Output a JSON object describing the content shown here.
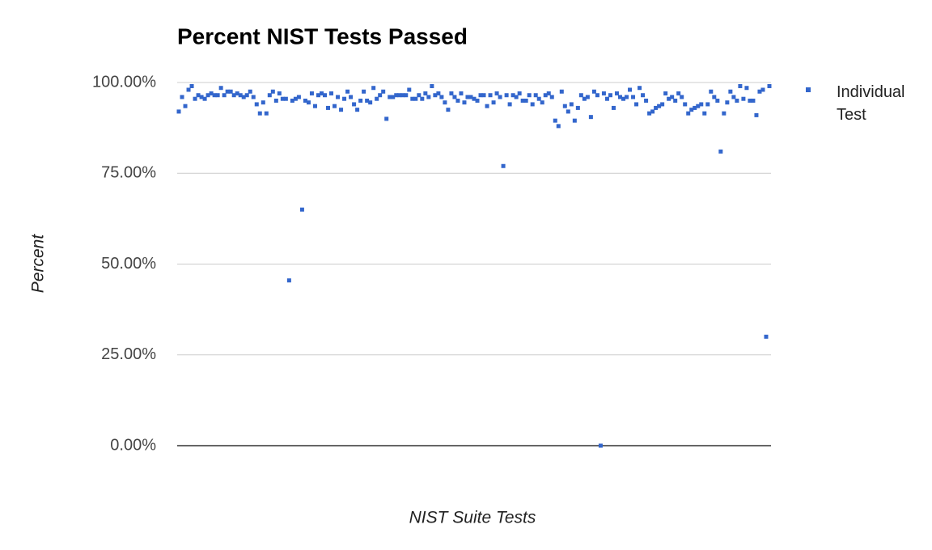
{
  "chart_data": {
    "type": "scatter",
    "title": "Percent NIST Tests Passed",
    "x_label": "NIST Suite Tests",
    "y_label": "Percent",
    "series": [
      {
        "name": "Individual Test",
        "color": "#3366cc",
        "values": [
          92,
          96,
          93.5,
          98,
          99,
          95.5,
          96.5,
          96,
          95.5,
          96.5,
          97,
          96.5,
          96.5,
          98.5,
          96.5,
          97.5,
          97.5,
          96.5,
          97,
          96.5,
          96,
          96.5,
          97.5,
          96,
          94,
          91.5,
          94.5,
          91.5,
          96.5,
          97.5,
          95,
          97,
          95.5,
          95.5,
          45.5,
          95,
          95.5,
          96,
          65,
          95,
          94.5,
          97,
          93.5,
          96.5,
          97,
          96.5,
          93,
          97,
          93.5,
          96,
          92.5,
          95.5,
          97.5,
          96,
          94,
          92.5,
          95,
          97.5,
          95,
          94.5,
          98.5,
          95.5,
          96.5,
          97.5,
          90,
          96,
          96,
          96.5,
          96.5,
          96.5,
          96.5,
          98,
          95.5,
          95.5,
          96.5,
          95.5,
          97,
          96,
          99,
          96.5,
          97,
          96,
          94.5,
          92.5,
          97,
          96,
          95,
          97,
          94.5,
          96,
          96,
          95.5,
          95,
          96.5,
          96.5,
          93.5,
          96.5,
          94.5,
          97,
          96,
          77,
          96.5,
          94,
          96.5,
          96,
          97,
          95,
          95,
          96.5,
          94,
          96.5,
          95.5,
          94.5,
          96.5,
          97,
          96,
          89.5,
          88,
          97.5,
          93.5,
          92,
          94,
          89.5,
          93,
          96.5,
          95.5,
          96,
          90.5,
          97.5,
          96.5,
          0,
          97,
          95.5,
          96.5,
          93,
          97,
          96,
          95.5,
          96,
          98,
          96,
          94,
          98.5,
          96.5,
          95,
          91.5,
          92,
          93,
          93.5,
          94,
          97,
          95.5,
          96,
          95,
          97,
          96,
          94,
          91.5,
          92.5,
          93,
          93.5,
          94,
          91.5,
          94,
          97.5,
          96,
          95,
          81,
          91.5,
          94.5,
          97.5,
          96,
          95,
          99,
          95.5,
          98.5,
          95,
          95,
          91,
          97.5,
          98,
          30,
          99
        ]
      }
    ],
    "ylim": [
      0,
      100
    ],
    "yticks": [
      {
        "value": 0,
        "label": "0.00%"
      },
      {
        "value": 25,
        "label": "25.00%"
      },
      {
        "value": 50,
        "label": "50.00%"
      },
      {
        "value": 75,
        "label": "75.00%"
      },
      {
        "value": 100,
        "label": "100.00%"
      }
    ],
    "grid": true,
    "legend": "right"
  }
}
